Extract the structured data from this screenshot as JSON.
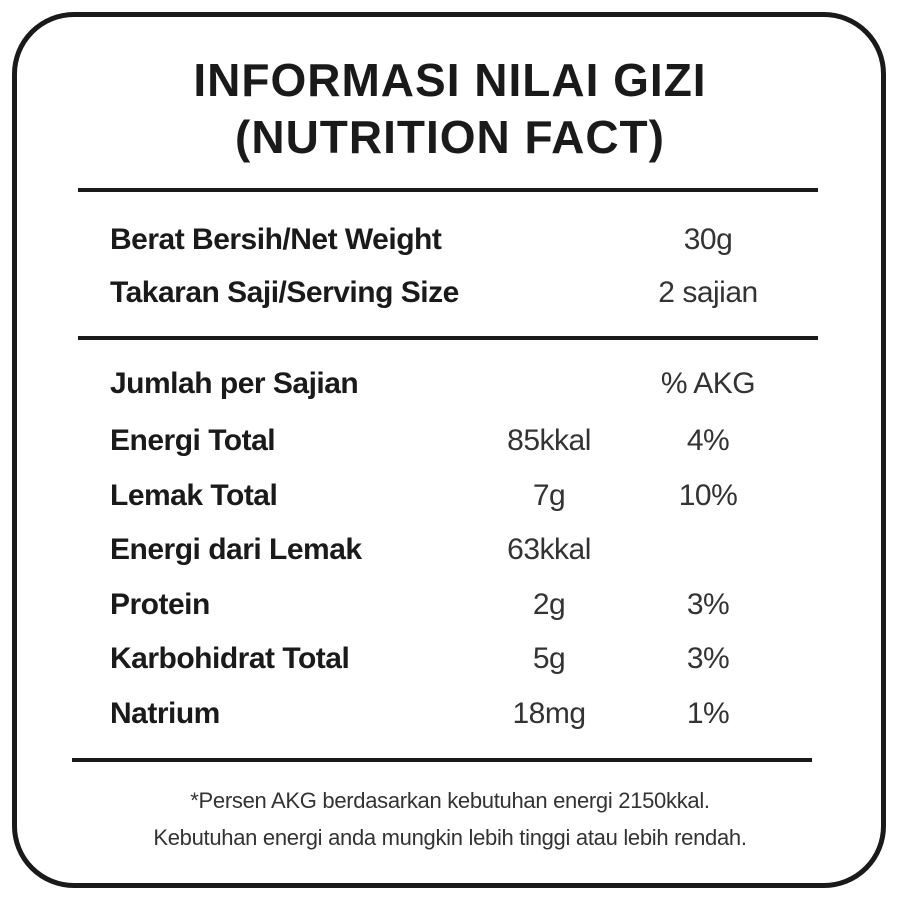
{
  "title": {
    "lines": [
      "INFORMASI NILAI GIZI",
      "(NUTRITION FACT)"
    ]
  },
  "info": {
    "rows": [
      {
        "label": "Berat Bersih/Net Weight",
        "value": "30g"
      },
      {
        "label": "Takaran Saji/Serving Size",
        "value": "2 sajian"
      }
    ]
  },
  "nutrients": {
    "header": {
      "label": "Jumlah per Sajian",
      "akg": "% AKG"
    },
    "rows": [
      {
        "label": "Energi Total",
        "amount": "85kkal",
        "akg": "4%"
      },
      {
        "label": "Lemak Total",
        "amount": "7g",
        "akg": "10%"
      },
      {
        "label": "Energi dari Lemak",
        "amount": "63kkal"
      },
      {
        "label": "Protein",
        "amount": "2g",
        "akg": "3%"
      },
      {
        "label": "Karbohidrat Total",
        "amount": "5g",
        "akg": "3%"
      },
      {
        "label": "Natrium",
        "amount": "18mg",
        "akg": "1%"
      }
    ]
  },
  "footnote": {
    "lines": [
      "*Persen AKG berdasarkan kebutuhan energi 2150kkal.",
      "Kebutuhan energi anda mungkin lebih tinggi atau lebih rendah."
    ]
  }
}
